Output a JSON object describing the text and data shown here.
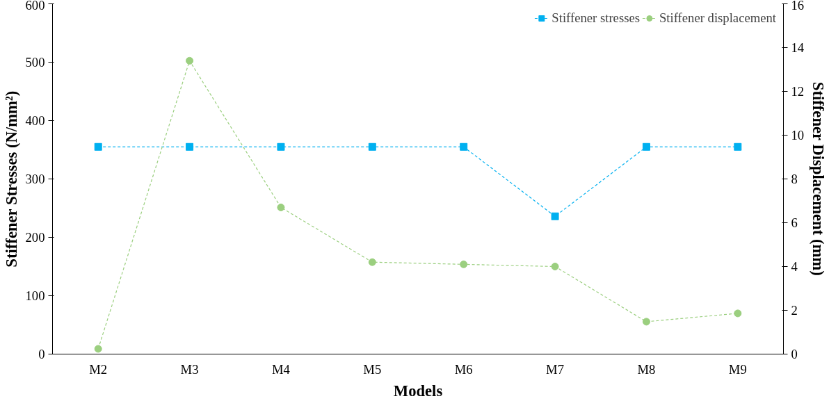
{
  "chart_data": {
    "type": "line",
    "xlabel": "Models",
    "ylabel": "Stiffener Stresses (N/mm²)",
    "y2label": "Stiffener Displacement (mm)",
    "categories": [
      "M2",
      "M3",
      "M4",
      "M5",
      "M6",
      "M7",
      "M8",
      "M9"
    ],
    "series": [
      {
        "name": "Stiffener stresses",
        "color": "#00b0f0",
        "marker": "square",
        "values": [
          355,
          355,
          355,
          355,
          355,
          236,
          355,
          355
        ]
      },
      {
        "name": "Stiffener displacement",
        "color": "#9bcf7f",
        "marker": "circle",
        "axis": "y2",
        "values": [
          0.24,
          13.4,
          6.7,
          4.2,
          4.1,
          4.0,
          1.48,
          1.86
        ]
      }
    ],
    "ylim": [
      0,
      600
    ],
    "yticks": [
      0,
      100,
      200,
      300,
      400,
      500,
      600
    ],
    "y2lim": [
      0,
      16
    ],
    "y2ticks": [
      0,
      2,
      4,
      6,
      8,
      10,
      12,
      14,
      16
    ],
    "line_style": "dashed",
    "grid": false,
    "legend": "top right"
  }
}
